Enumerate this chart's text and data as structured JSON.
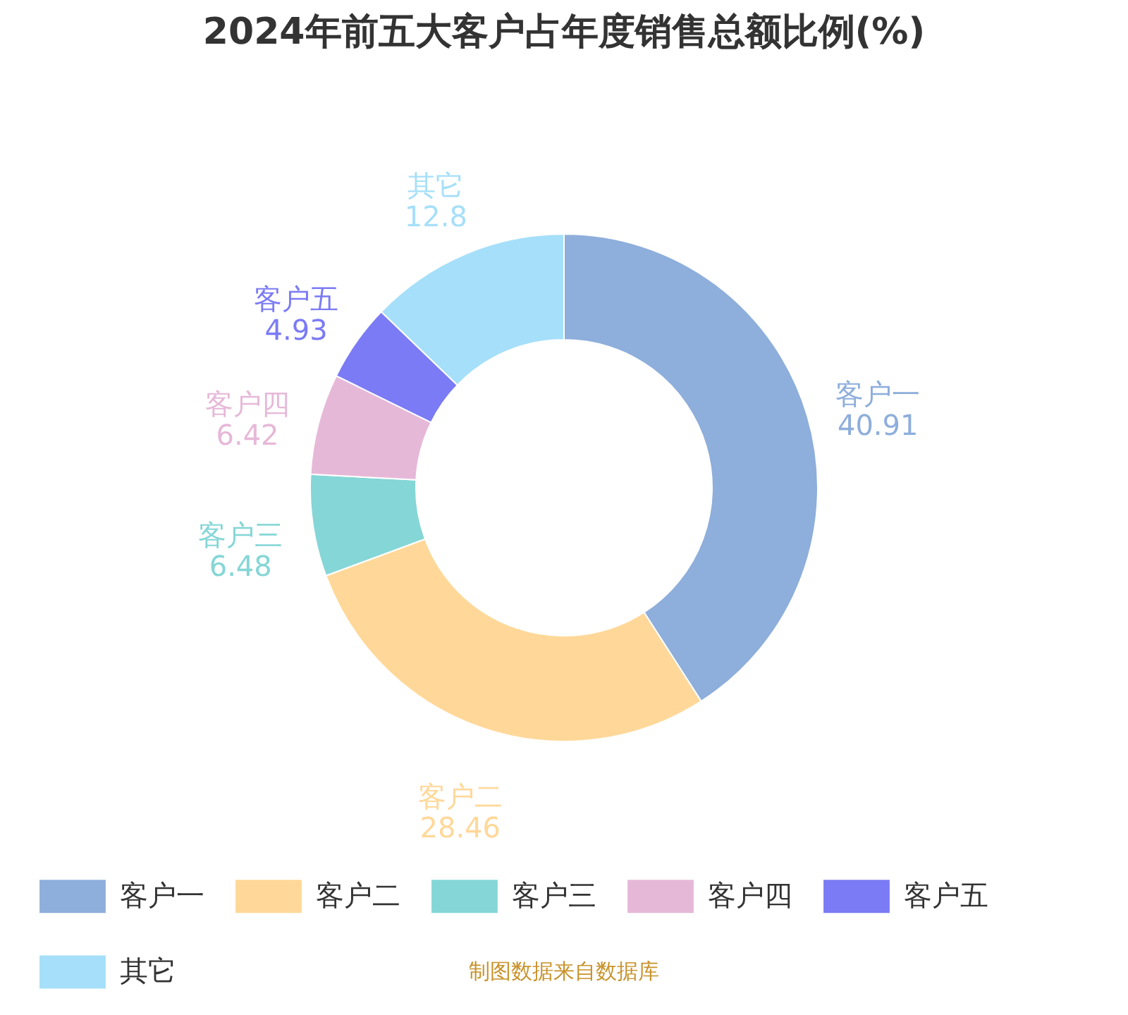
{
  "chart_data": {
    "type": "donut",
    "title": "2024年前五大客户占年度销售总额比例(%)",
    "categories": [
      "客户一",
      "客户二",
      "客户三",
      "客户四",
      "客户五",
      "其它"
    ],
    "values": [
      40.91,
      28.46,
      6.48,
      6.42,
      4.93,
      12.8
    ],
    "colors": [
      "#8eaedb",
      "#ffd899",
      "#85d6d6",
      "#e6b8d8",
      "#7b7bf5",
      "#a6dff9"
    ],
    "data_labels": true,
    "legend": "bottom",
    "annotations": [
      "制图数据来自数据库"
    ]
  }
}
